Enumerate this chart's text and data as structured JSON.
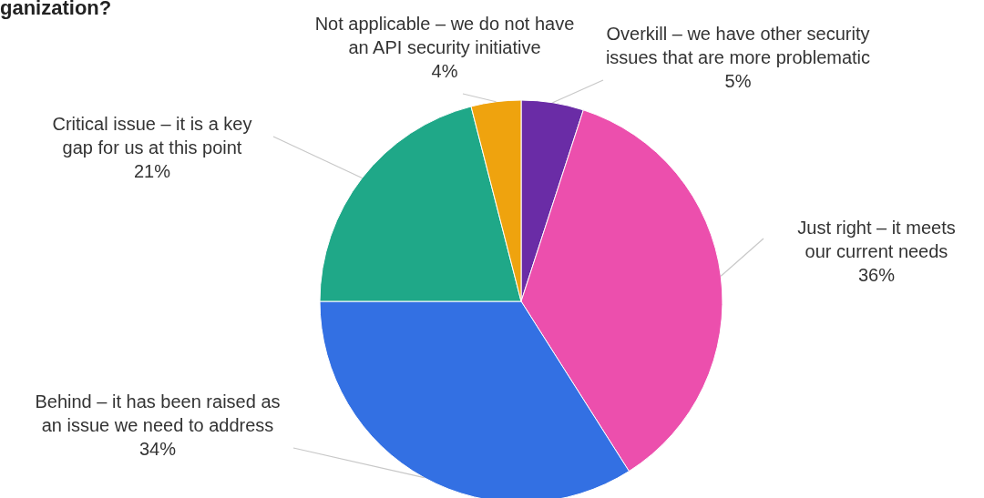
{
  "chart_data": {
    "type": "pie",
    "title": "ganization?",
    "categories": [
      "Overkill – we have other security issues that are more problematic",
      "Just right – it meets our current needs",
      "Behind – it has been raised as an issue we need to address",
      "Critical issue – it is a key gap for us at this point",
      "Not applicable – we do not have an API security initiative"
    ],
    "values": [
      5,
      36,
      34,
      21,
      4
    ],
    "value_labels": [
      "5%",
      "36%",
      "34%",
      "21%",
      "4%"
    ],
    "colors": [
      "#6a2ca6",
      "#ec4fad",
      "#3370e3",
      "#1fa888",
      "#efa30e"
    ],
    "legend": false
  }
}
